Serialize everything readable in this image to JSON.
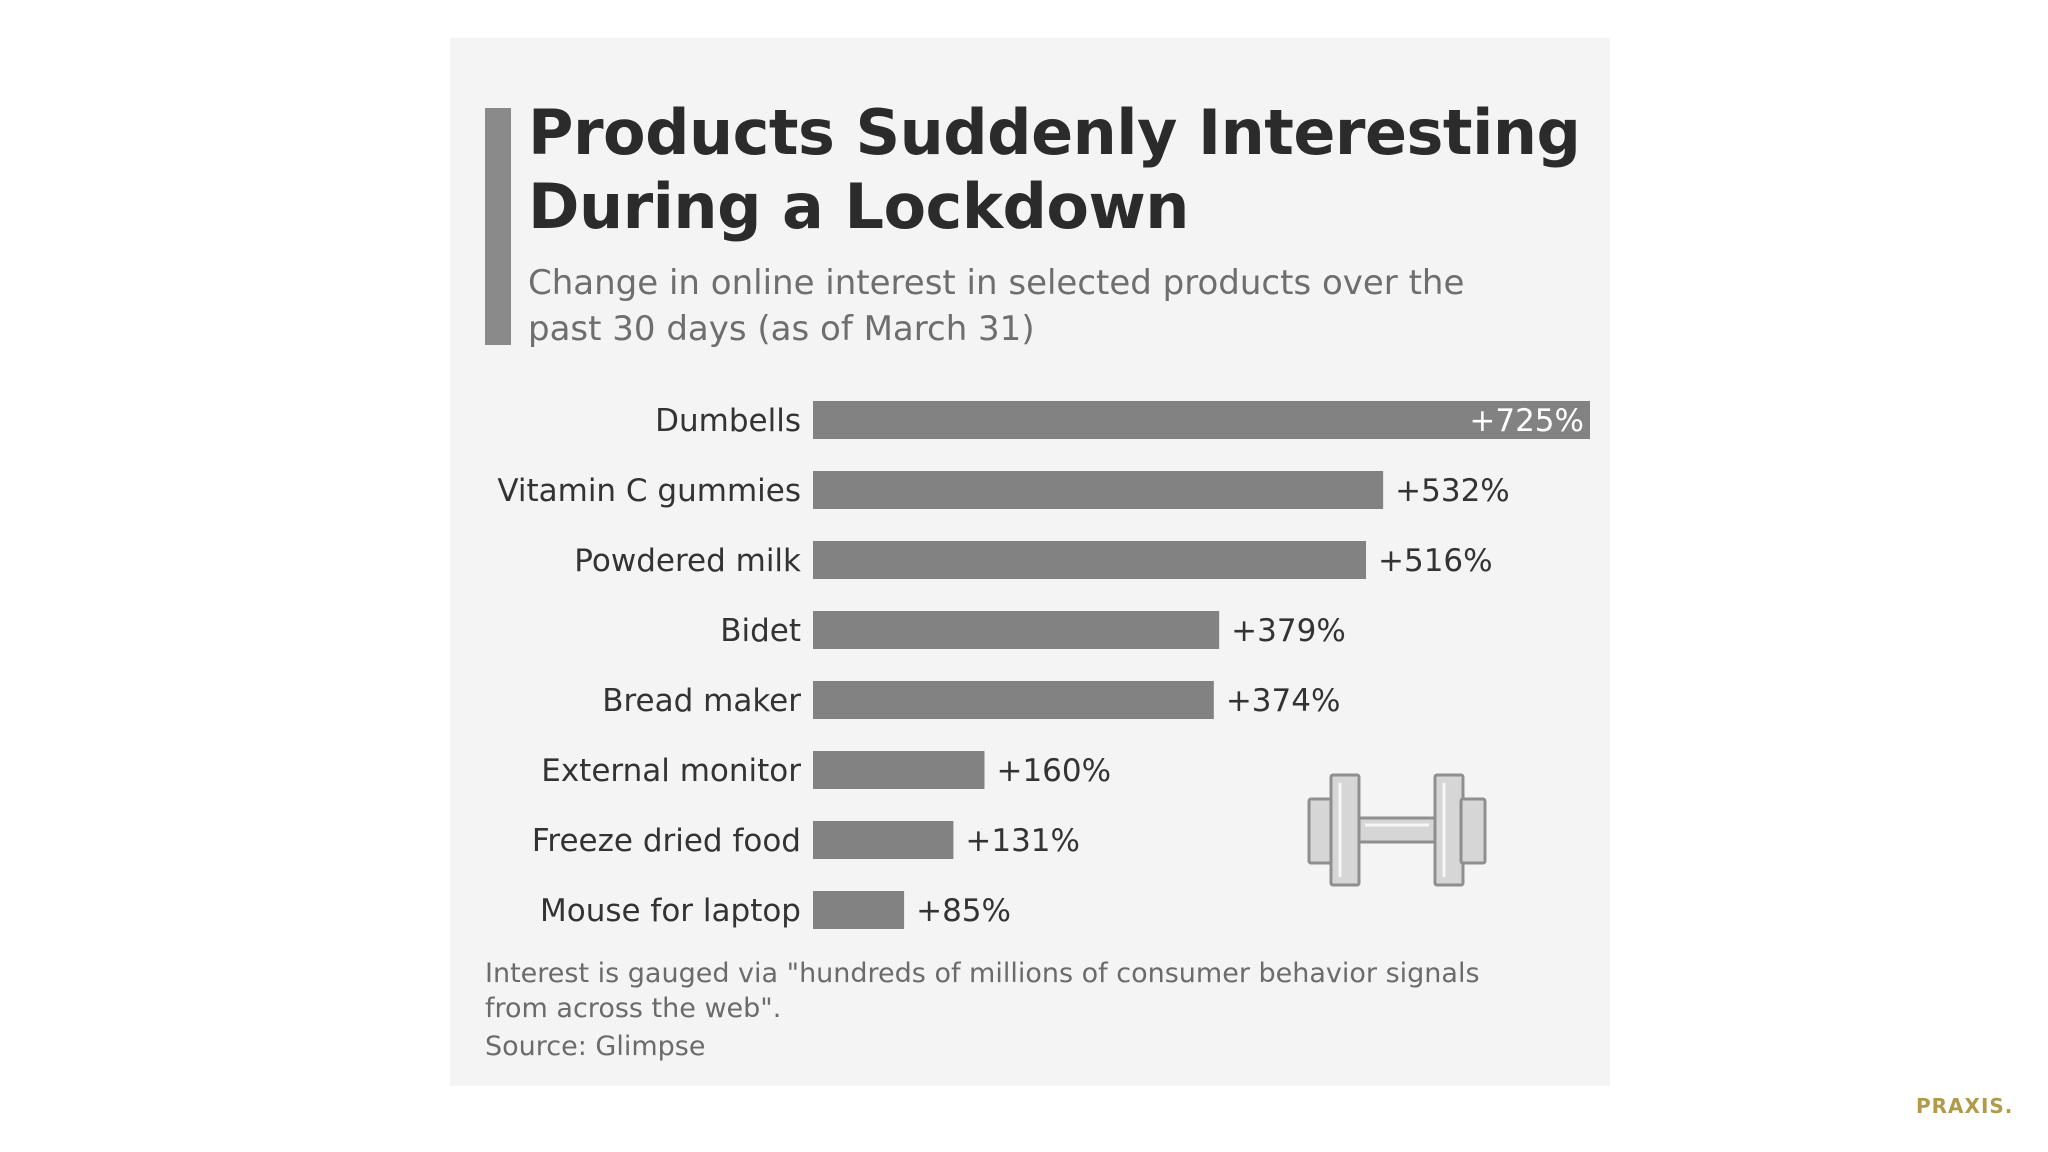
{
  "chart_data": {
    "type": "bar",
    "orientation": "horizontal",
    "title": "Products Suddenly Interesting During a Lockdown",
    "subtitle": "Change in online interest in selected products over the past 30 days (as of March 31)",
    "categories": [
      "Dumbells",
      "Vitamin C gummies",
      "Powdered milk",
      "Bidet",
      "Bread maker",
      "External monitor",
      "Freeze dried food",
      "Mouse for laptop"
    ],
    "values": [
      725,
      532,
      516,
      379,
      374,
      160,
      131,
      85
    ],
    "value_labels": [
      "+725%",
      "+532%",
      "+516%",
      "+379%",
      "+374%",
      "+160%",
      "+131%",
      "+85%"
    ],
    "xlim": [
      0,
      725
    ],
    "grid": false,
    "legend": "none",
    "footnote": "Interest is gauged via \"hundreds of millions of consumer behavior signals from across the web\".",
    "source": "Source: Glimpse",
    "bar_color": "#828282"
  },
  "brand": "PRAXIS.",
  "decoration": {
    "icon": "dumbbell-icon"
  }
}
